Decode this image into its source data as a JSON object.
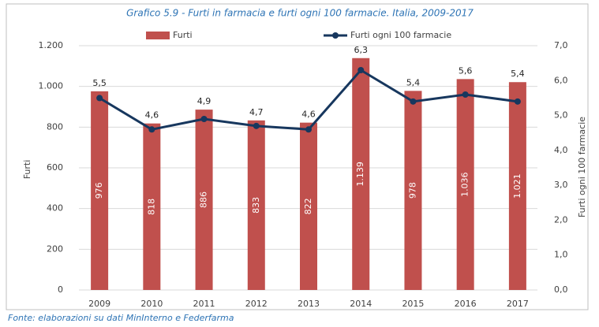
{
  "chart_data": {
    "type": "bar",
    "title": "Grafico 5.9 - Furti in farmacia e furti ogni 100 farmacie. Italia, 2009-2017",
    "source": "Fonte: elaborazioni su dati MinInterno e Federfarma",
    "y_label": "Furti",
    "y2_label": "Furti ogni 100 farmacie",
    "categories": [
      "2009",
      "2010",
      "2011",
      "2012",
      "2013",
      "2014",
      "2015",
      "2016",
      "2017"
    ],
    "series": [
      {
        "name": "Furti",
        "type": "bar",
        "color": "#c0504d",
        "values": [
          976,
          818,
          886,
          833,
          822,
          1139,
          978,
          1036,
          1021
        ],
        "value_labels": [
          "976",
          "818",
          "886",
          "833",
          "822",
          "1.139",
          "978",
          "1.036",
          "1.021"
        ]
      },
      {
        "name": "Furti ogni 100 farmacie",
        "type": "line",
        "axis": "y2",
        "color": "#17375e",
        "values": [
          5.5,
          4.6,
          4.9,
          4.7,
          4.6,
          6.3,
          5.4,
          5.6,
          5.4
        ],
        "value_labels": [
          "5,5",
          "4,6",
          "4,9",
          "4,7",
          "4,6",
          "6,3",
          "5,4",
          "5,6",
          "5,4"
        ]
      }
    ],
    "ylim": [
      0,
      1200
    ],
    "yticks": [
      0,
      200,
      400,
      600,
      800,
      {
        "value": 1000,
        "label": "1.000"
      },
      {
        "value": 1200,
        "label": "1.200"
      }
    ],
    "y2lim": [
      0,
      7
    ],
    "y2ticks": [
      {
        "value": 0,
        "label": "0,0"
      },
      {
        "value": 1,
        "label": "1,0"
      },
      {
        "value": 2,
        "label": "2,0"
      },
      {
        "value": 3,
        "label": "3,0"
      },
      {
        "value": 4,
        "label": "4,0"
      },
      {
        "value": 5,
        "label": "5,0"
      },
      {
        "value": 6,
        "label": "6,0"
      },
      {
        "value": 7,
        "label": "7,0"
      }
    ],
    "grid": true,
    "legend": "top"
  }
}
